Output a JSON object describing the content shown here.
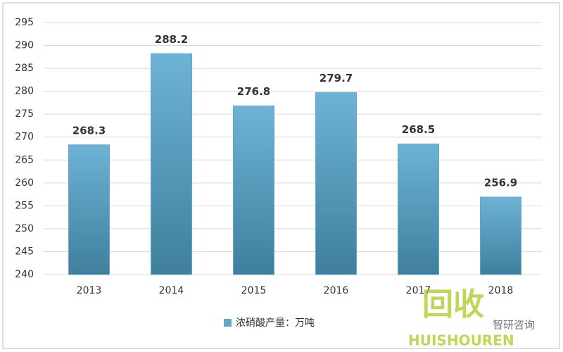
{
  "chart_data": {
    "type": "bar",
    "categories": [
      "2013",
      "2014",
      "2015",
      "2016",
      "2017",
      "2018"
    ],
    "series": [
      {
        "name": "浓硝酸产量：万吨",
        "color": "#5ea9cc",
        "values": [
          268.3,
          288.2,
          276.8,
          279.7,
          268.5,
          256.9
        ]
      }
    ],
    "ylim": [
      240,
      295
    ],
    "yticks": [
      240,
      245,
      250,
      255,
      260,
      265,
      270,
      275,
      280,
      285,
      290,
      295
    ],
    "grid": true,
    "legend": "bottom"
  },
  "watermark": {
    "logo": "回收",
    "brand": "HUISHOUREN",
    "source": "智研咨询"
  }
}
